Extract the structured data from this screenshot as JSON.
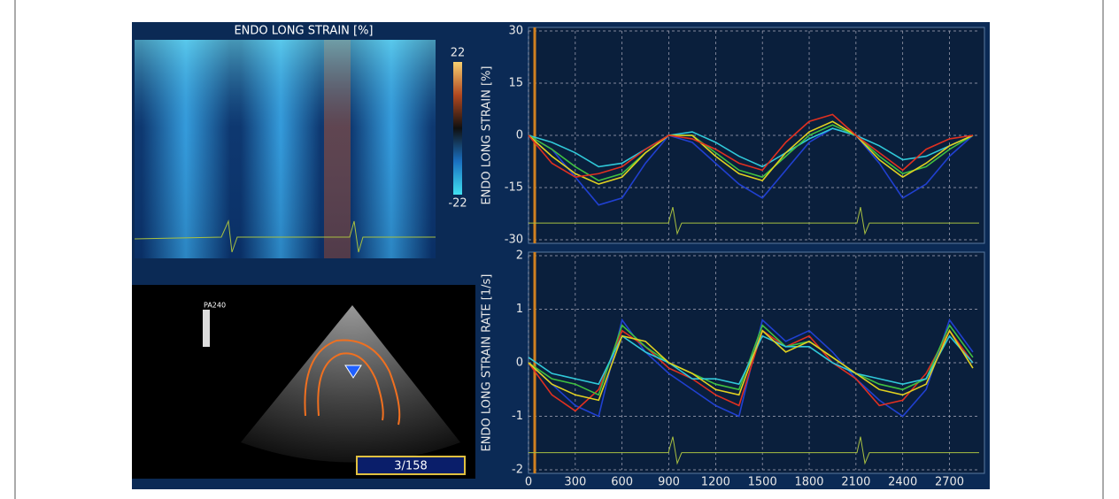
{
  "strain_map": {
    "title": "ENDO LONG STRAIN [%]",
    "scale_max": 22,
    "scale_min": -22
  },
  "echo": {
    "probe_label": "PA240",
    "frame": "3/158"
  },
  "chart_data": [
    {
      "type": "line",
      "y_label": "ENDO LONG STRAIN [%]",
      "x": [
        0,
        150,
        300,
        450,
        600,
        750,
        900,
        1050,
        1200,
        1350,
        1500,
        1650,
        1800,
        1950,
        2100,
        2250,
        2400,
        2550,
        2700,
        2850
      ],
      "xlim": [
        0,
        2890
      ],
      "ylim": [
        -30,
        30
      ],
      "yticks": [
        30,
        15,
        0,
        -15,
        -30
      ],
      "grid": true,
      "series": [
        {
          "color": "#2040d0",
          "values": [
            0,
            -4,
            -12,
            -20,
            -18,
            -8,
            0,
            -2,
            -8,
            -14,
            -18,
            -10,
            -2,
            2,
            0,
            -8,
            -18,
            -14,
            -6,
            0
          ]
        },
        {
          "color": "#30c8d8",
          "values": [
            0,
            -2,
            -5,
            -9,
            -8,
            -4,
            0,
            1,
            -2,
            -6,
            -9,
            -5,
            -1,
            2,
            0,
            -3,
            -7,
            -6,
            -3,
            0
          ]
        },
        {
          "color": "#40c040",
          "values": [
            0,
            -4,
            -9,
            -13,
            -11,
            -5,
            0,
            0,
            -5,
            -10,
            -12,
            -6,
            0,
            3,
            0,
            -6,
            -11,
            -9,
            -4,
            0
          ]
        },
        {
          "color": "#e0d020",
          "values": [
            0,
            -6,
            -11,
            -14,
            -12,
            -5,
            0,
            0,
            -6,
            -11,
            -13,
            -5,
            1,
            4,
            0,
            -7,
            -12,
            -8,
            -3,
            0
          ]
        },
        {
          "color": "#e03020",
          "values": [
            0,
            -8,
            -12,
            -11,
            -9,
            -4,
            0,
            -1,
            -4,
            -8,
            -10,
            -2,
            4,
            6,
            0,
            -5,
            -10,
            -4,
            -1,
            0
          ]
        }
      ]
    },
    {
      "type": "line",
      "y_label": "ENDO LONG STRAIN RATE [1/s]",
      "x": [
        0,
        150,
        300,
        450,
        600,
        750,
        900,
        1050,
        1200,
        1350,
        1500,
        1650,
        1800,
        1950,
        2100,
        2250,
        2400,
        2550,
        2700,
        2850
      ],
      "xlim": [
        0,
        2890
      ],
      "xticks": [
        0,
        300,
        600,
        900,
        1200,
        1500,
        1800,
        2100,
        2400,
        2700
      ],
      "ylim": [
        -2,
        2
      ],
      "yticks": [
        2,
        1,
        0,
        -1,
        -2
      ],
      "grid": true,
      "series": [
        {
          "color": "#2040d0",
          "values": [
            0,
            -0.4,
            -0.8,
            -1,
            0.8,
            0.2,
            -0.2,
            -0.5,
            -0.8,
            -1,
            0.8,
            0.4,
            0.6,
            0.2,
            -0.3,
            -0.7,
            -1,
            -0.5,
            0.8,
            0.2
          ]
        },
        {
          "color": "#e03020",
          "values": [
            0,
            -0.6,
            -0.9,
            -0.5,
            0.6,
            0.3,
            -0.1,
            -0.3,
            -0.6,
            -0.8,
            0.6,
            0.3,
            0.5,
            0,
            -0.3,
            -0.8,
            -0.7,
            -0.2,
            0.6,
            0
          ]
        },
        {
          "color": "#40c040",
          "values": [
            0,
            -0.3,
            -0.4,
            -0.6,
            0.7,
            0.3,
            0,
            -0.2,
            -0.4,
            -0.5,
            0.7,
            0.3,
            0.4,
            0.1,
            -0.2,
            -0.4,
            -0.5,
            -0.3,
            0.7,
            0.1
          ]
        },
        {
          "color": "#30c8d8",
          "values": [
            0.1,
            -0.2,
            -0.3,
            -0.4,
            0.5,
            0.2,
            0,
            -0.3,
            -0.3,
            -0.4,
            0.5,
            0.3,
            0.3,
            0,
            -0.2,
            -0.3,
            -0.4,
            -0.3,
            0.5,
            0
          ]
        },
        {
          "color": "#e0d020",
          "values": [
            0,
            -0.4,
            -0.6,
            -0.7,
            0.5,
            0.4,
            0,
            -0.2,
            -0.5,
            -0.6,
            0.6,
            0.2,
            0.4,
            0.1,
            -0.2,
            -0.5,
            -0.6,
            -0.4,
            0.6,
            -0.1
          ]
        }
      ]
    }
  ]
}
